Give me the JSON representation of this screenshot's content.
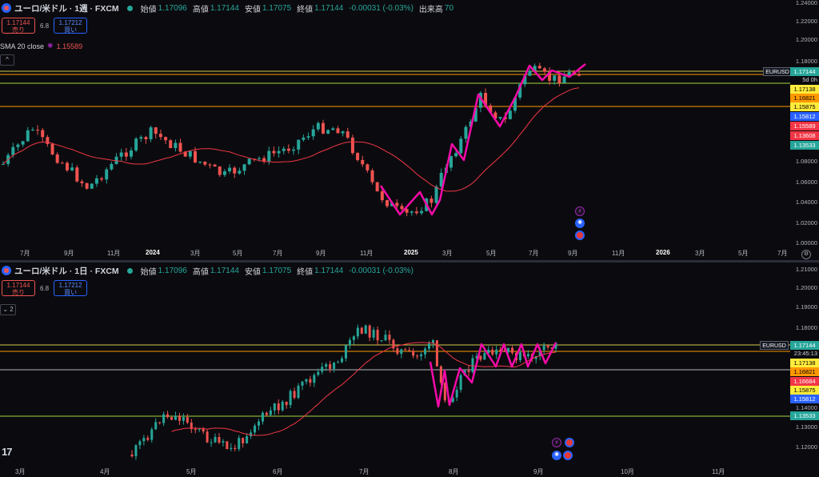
{
  "colors": {
    "up": "#26a69a",
    "down": "#ef5350",
    "sma": "#f23645",
    "drawing": "#f50aa8",
    "lime_line": "#a5d63f",
    "orange_line": "#ff9800",
    "yellow_line": "#d4c84a"
  },
  "top": {
    "title": "ユーロ/米ドル · 1週 · FXCM",
    "ohlc": {
      "open_label": "始値",
      "open": "1.17096",
      "high_label": "高値",
      "high": "1.17144",
      "low_label": "安値",
      "low": "1.17075",
      "close_label": "終値",
      "close": "1.17144",
      "change": "-0.00031 (-0.03%)",
      "volume_label": "出来高",
      "volume": "70"
    },
    "sell": {
      "price": "1.17144",
      "label": "売り"
    },
    "spread": "6.8",
    "buy": {
      "price": "1.17212",
      "label": "買い"
    },
    "indicator": {
      "name": "SMA 20 close",
      "value": "1.15589",
      "icon": "gear-dot-icon"
    },
    "collapse_label": "^",
    "price_axis": [
      "1.24000",
      "1.22000",
      "1.20000",
      "1.18000",
      "1.08000",
      "1.06000",
      "1.04000",
      "1.02000",
      "1.00000"
    ],
    "symbol_tag": "EURUSD",
    "countdown": "5d 0h",
    "tags": [
      {
        "text": "1.17144",
        "color": "#26a69a"
      },
      {
        "text": "1.17138",
        "color": "#ffeb3b"
      },
      {
        "text": "1.16821",
        "color": "#ff9800"
      },
      {
        "text": "1.15875",
        "color": "#ffeb3b"
      },
      {
        "text": "1.15812",
        "color": "#2962ff"
      },
      {
        "text": "1.15589",
        "color": "#f23645"
      },
      {
        "text": "1.13608",
        "color": "#f23645"
      },
      {
        "text": "1.13533",
        "color": "#26a69a"
      }
    ],
    "time_axis": [
      {
        "text": "7月",
        "bold": false
      },
      {
        "text": "9月",
        "bold": false
      },
      {
        "text": "11月",
        "bold": false
      },
      {
        "text": "2024",
        "bold": true
      },
      {
        "text": "3月",
        "bold": false
      },
      {
        "text": "5月",
        "bold": false
      },
      {
        "text": "7月",
        "bold": false
      },
      {
        "text": "9月",
        "bold": false
      },
      {
        "text": "11月",
        "bold": false
      },
      {
        "text": "2025",
        "bold": true
      },
      {
        "text": "3月",
        "bold": false
      },
      {
        "text": "5月",
        "bold": false
      },
      {
        "text": "7月",
        "bold": false
      },
      {
        "text": "9月",
        "bold": false
      },
      {
        "text": "11月",
        "bold": false
      },
      {
        "text": "2026",
        "bold": true
      },
      {
        "text": "3月",
        "bold": false
      },
      {
        "text": "5月",
        "bold": false
      },
      {
        "text": "7月",
        "bold": false
      }
    ],
    "events": [
      "bolt-event-icon",
      "gear-event-icon",
      "flag-event-icon"
    ]
  },
  "bottom": {
    "title": "ユーロ/米ドル · 1日 · FXCM",
    "ohlc": {
      "open_label": "始値",
      "open": "1.17096",
      "high_label": "高値",
      "high": "1.17144",
      "low_label": "安値",
      "low": "1.17075",
      "close_label": "終値",
      "close": "1.17144",
      "change": "-0.00031 (-0.03%)"
    },
    "sell": {
      "price": "1.17144",
      "label": "売り"
    },
    "spread": "6.8",
    "buy": {
      "price": "1.17212",
      "label": "買い"
    },
    "collapse_label": "⌄ 2",
    "price_axis": [
      "1.21000",
      "1.20000",
      "1.19000",
      "1.18000",
      "1.14000",
      "1.13000",
      "1.12000"
    ],
    "symbol_tag": "EURUSD",
    "countdown": "23:45:13",
    "tags": [
      {
        "text": "1.17144",
        "color": "#26a69a"
      },
      {
        "text": "1.17138",
        "color": "#ffeb3b"
      },
      {
        "text": "1.16821",
        "color": "#ff9800"
      },
      {
        "text": "1.16684",
        "color": "#f23645"
      },
      {
        "text": "1.15875",
        "color": "#ffeb3b"
      },
      {
        "text": "1.15812",
        "color": "#2962ff"
      },
      {
        "text": "1.13533",
        "color": "#26a69a"
      }
    ],
    "time_axis": [
      {
        "text": "3月"
      },
      {
        "text": "4月"
      },
      {
        "text": "5月"
      },
      {
        "text": "6月"
      },
      {
        "text": "7月"
      },
      {
        "text": "8月"
      },
      {
        "text": "9月"
      },
      {
        "text": "10月"
      },
      {
        "text": "11月"
      }
    ],
    "logo": "17",
    "events": [
      "bolt-event-icon",
      "flag-event-icon",
      "gear-event-icon",
      "flag-event-icon"
    ]
  }
}
